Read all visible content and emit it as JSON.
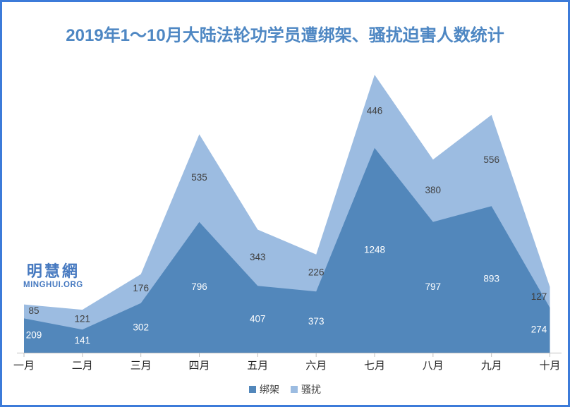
{
  "title": "2019年1～10月大陆法轮功学员遭绑架、骚扰迫害人数统计",
  "watermark": {
    "cjk": "明慧網",
    "latin": "MINGHUI.ORG"
  },
  "chart_data": {
    "type": "area",
    "stacked": true,
    "title": "2019年1～10月大陆法轮功学员遭绑架、骚扰迫害人数统计",
    "categories": [
      "一月",
      "二月",
      "三月",
      "四月",
      "五月",
      "六月",
      "七月",
      "八月",
      "九月",
      "十月"
    ],
    "series": [
      {
        "name": "绑架",
        "values": [
          209,
          141,
          302,
          796,
          407,
          373,
          1248,
          797,
          893,
          274
        ],
        "color": "#5287bb",
        "label_color": "#ffffff"
      },
      {
        "name": "骚扰",
        "values": [
          85,
          121,
          176,
          535,
          343,
          226,
          446,
          380,
          556,
          127
        ],
        "color": "#9cbce1",
        "label_color": "#404040"
      }
    ],
    "stacked_totals": [
      294,
      262,
      478,
      1331,
      750,
      599,
      1694,
      1177,
      1449,
      401
    ],
    "xlabel": "",
    "ylabel": "",
    "ylim": [
      0,
      1800
    ],
    "y_axis_visible": false,
    "grid": false,
    "data_labels": true,
    "legend_position": "bottom"
  },
  "colors": {
    "frame_border": "#3c7bd9",
    "title_text": "#4e87c3",
    "axis_line": "#bfbfbf",
    "month_label": "#262626",
    "watermark": "#4679c0"
  }
}
